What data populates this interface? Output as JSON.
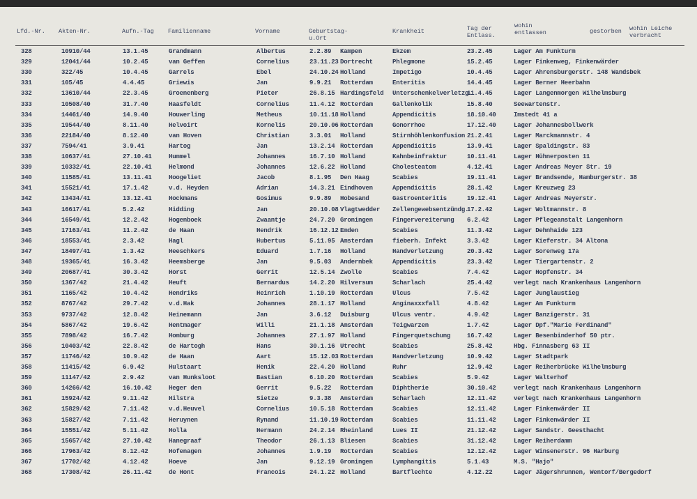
{
  "header": {
    "columns": [
      "Lfd.-Nr.",
      "Akten-Nr.",
      "Aufn.-Tag",
      "Familienname",
      "Vorname",
      "Geburtstag-u.Ort",
      "Krankheit",
      "Tag der Entlass.",
      "wohin entlassen",
      "gestorben",
      "wohin Leiche verbracht"
    ]
  },
  "table": {
    "rows": [
      [
        "328",
        "10910/44",
        "13.1.45",
        "Grandmann",
        "Albertus",
        "2.2.89",
        "Kampen",
        "Ekzem",
        "23.2.45",
        "Lager Am Funkturm"
      ],
      [
        "329",
        "12041/44",
        "10.2.45",
        "van Geffen",
        "Cornelius",
        "23.11.23",
        "Dortrecht",
        "Phlegmone",
        "15.2.45",
        "Lager Finkenweg, Finkenwärder"
      ],
      [
        "330",
        "322/45",
        "10.4.45",
        "Garrels",
        "Ebel",
        "24.10.24",
        "Holland",
        "Impetigo",
        "10.4.45",
        "Lager Ahrensburgerstr. 148 Wandsbek"
      ],
      [
        "331",
        "105/45",
        "4.4.45",
        "Griewis",
        "Jan",
        "9.9.21",
        "Rotterdam",
        "Enteritis",
        "14.4.45",
        "Lager Berner Heerbahn"
      ],
      [
        "332",
        "13610/44",
        "22.3.45",
        "Groenenberg",
        "Pieter",
        "26.8.15",
        "Hardingsfeld",
        "Unterschenkelverletzg.",
        "11.4.45",
        "Lager Langenmorgen Wilhelmsburg"
      ],
      [
        "333",
        "10508/40",
        "31.7.40",
        "Haasfeldt",
        "Cornelius",
        "11.4.12",
        "Rotterdam",
        "Gallenkolik",
        "15.8.40",
        "Seewartenstr."
      ],
      [
        "334",
        "14461/40",
        "14.9.40",
        "Houwerling",
        "Metheus",
        "10.11.18",
        "Holland",
        "Appendicitis",
        "18.10.40",
        "Imstedt 41 a"
      ],
      [
        "335",
        "19544/40",
        "8.11.40",
        "Helvoirt",
        "Kornelis",
        "20.10.06",
        "Rotterdam",
        "Gonorrhoe",
        "17.12.40",
        "Lager Johannesbollwerk"
      ],
      [
        "336",
        "22184/40",
        "8.12.40",
        "van Hoven",
        "Christian",
        "3.3.01",
        "Holland",
        "Stirnhöhlenkonfusion",
        "21.2.41",
        "Lager Marckmannstr. 4"
      ],
      [
        "337",
        "7594/41",
        "3.9.41",
        "Hartog",
        "Jan",
        "13.2.14",
        "Rotterdam",
        "Appendicitis",
        "13.9.41",
        "Lager Spaldingstr. 83"
      ],
      [
        "338",
        "10637/41",
        "27.10.41",
        "Hummel",
        "Johannes",
        "16.7.10",
        "Holland",
        "Kahnbeinfraktur",
        "10.11.41",
        "Lager Hühnerposten 11"
      ],
      [
        "339",
        "10332/41",
        "22.10.41",
        "Helmond",
        "Johannes",
        "12.6.22",
        "Holland",
        "Cholesteatom",
        "4.12.41",
        "Lager Andreas Meyer Str. 19"
      ],
      [
        "340",
        "11585/41",
        "13.11.41",
        "Hoogeliet",
        "Jacob",
        "8.1.95",
        "Den Haag",
        "Scabies",
        "19.11.41",
        "Lager Brandsende, Hamburgerstr. 38"
      ],
      [
        "341",
        "15521/41",
        "17.1.42",
        "v.d. Heyden",
        "Adrian",
        "14.3.21",
        "Eindhoven",
        "Appendicitis",
        "28.1.42",
        "Lager Kreuzweg 23"
      ],
      [
        "342",
        "13434/41",
        "13.12.41",
        "Hockmans",
        "Gosimus",
        "9.9.89",
        "Hobesand",
        "Gastroenteritis",
        "19.12.41",
        "Lager Andreas Meyerstr."
      ],
      [
        "343",
        "16617/41",
        "5.2.42",
        "Hidding",
        "Jan",
        "20.10.08",
        "Vlagtwedder",
        "Zellengewebsentzündg.",
        "17.2.42",
        "Lager Woltmannstr. 8"
      ],
      [
        "344",
        "16549/41",
        "12.2.42",
        "Hogenboek",
        "Zwaantje",
        "24.7.20",
        "Groningen",
        "Fingervereiterung",
        "6.2.42",
        "Lager Pflegeanstalt Langenhorn"
      ],
      [
        "345",
        "17163/41",
        "11.2.42",
        "de Haan",
        "Hendrik",
        "16.12.12",
        "Emden",
        "Scabies",
        "11.3.42",
        "Lager Dehnhaide 123"
      ],
      [
        "346",
        "18553/41",
        "2.3.42",
        "Hagl",
        "Hubertus",
        "5.11.95",
        "Amsterdam",
        "fieberh. Infekt",
        "3.3.42",
        "Lager Kieferstr. 34 Altona"
      ],
      [
        "347",
        "18497/41",
        "1.3.42",
        "Heeschkers",
        "Eduard",
        "1.7.16",
        "Holland",
        "Handverletzung",
        "20.3.42",
        "Lager Sorenweg 17a"
      ],
      [
        "348",
        "19365/41",
        "16.3.42",
        "Heemsberge",
        "Jan",
        "9.5.03",
        "Andernbek",
        "Appendicitis",
        "23.3.42",
        "Lager Tiergartenstr. 2"
      ],
      [
        "349",
        "20687/41",
        "30.3.42",
        "Horst",
        "Gerrit",
        "12.5.14",
        "Zwolle",
        "Scabies",
        "7.4.42",
        "Lager Hopfenstr. 34"
      ],
      [
        "350",
        "1367/42",
        "21.4.42",
        "Heuft",
        "Bernardus",
        "14.2.20",
        "Hilversum",
        "Scharlach",
        "25.4.42",
        "verlegt nach Krankenhaus Langenhorn"
      ],
      [
        "351",
        "1165/42",
        "10.4.42",
        "Hendriks",
        "Heinrich",
        "1.10.19",
        "Rotterdam",
        "Ulcus",
        "7.5.42",
        "Lager Junglaustieg"
      ],
      [
        "352",
        "8767/42",
        "29.7.42",
        "v.d.Hak",
        "Johannes",
        "28.1.17",
        "Holland",
        "Anginaxxxfall",
        "4.8.42",
        "Lager Am Funkturm"
      ],
      [
        "353",
        "9737/42",
        "12.8.42",
        "Heinemann",
        "Jan",
        "3.6.12",
        "Duisburg",
        "Ulcus ventr.",
        "4.9.42",
        "Lager Banzigerstr. 31"
      ],
      [
        "354",
        "5867/42",
        "19.6.42",
        "Hentmager",
        "Willi",
        "21.1.18",
        "Amsterdam",
        "Teigwarzen",
        "1.7.42",
        "Lager Dpf.\"Marie Ferdinand\""
      ],
      [
        "355",
        "7898/42",
        "16.7.42",
        "Homburg",
        "Johannes",
        "27.1.97",
        "Holland",
        "Fingerquetschung",
        "16.7.42",
        "Lager Besenbinderhof 50 ptr."
      ],
      [
        "356",
        "10403/42",
        "22.8.42",
        "de Hartogh",
        "Hans",
        "30.1.16",
        "Utrecht",
        "Scabies",
        "25.8.42",
        "Hbg. Finnasberg 63 II"
      ],
      [
        "357",
        "11746/42",
        "10.9.42",
        "de Haan",
        "Aart",
        "15.12.03",
        "Rotterdam",
        "Handverletzung",
        "10.9.42",
        "Lager Stadtpark"
      ],
      [
        "358",
        "11415/42",
        "6.9.42",
        "Hulstaart",
        "Henik",
        "22.4.20",
        "Holland",
        "Ruhr",
        "12.9.42",
        "Lager Reiherbrücke Wilhelmsburg"
      ],
      [
        "359",
        "11147/42",
        "2.9.42",
        "van Hunksloot",
        "Bastian",
        "6.10.20",
        "Rotterdam",
        "Scabies",
        "5.9.42",
        "Lager Walterhof"
      ],
      [
        "360",
        "14266/42",
        "16.10.42",
        "Heger den",
        "Gerrit",
        "9.5.22",
        "Rotterdam",
        "Diphtherie",
        "30.10.42",
        "verlegt nach Krankenhaus Langenhorn"
      ],
      [
        "361",
        "15924/42",
        "9.11.42",
        "Hilstra",
        "Sietze",
        "9.3.38",
        "Amsterdam",
        "Scharlach",
        "12.11.42",
        "verlegt nach Krankenhaus Langenhorn"
      ],
      [
        "362",
        "15829/42",
        "7.11.42",
        "v.d.Heuvel",
        "Cornelius",
        "10.5.18",
        "Rotterdam",
        "Scabies",
        "12.11.42",
        "Lager Finkenwärder II"
      ],
      [
        "363",
        "15827/42",
        "7.11.42",
        "Heruynen",
        "Rynand",
        "11.10.19",
        "Rotterdam",
        "Scabies",
        "11.11.42",
        "Lager Finkenwärder II"
      ],
      [
        "364",
        "15551/42",
        "5.11.42",
        "Holla",
        "Hermann",
        "24.2.14",
        "Rheinland",
        "Lues II",
        "21.12.42",
        "Lager Sandstr. Geesthacht"
      ],
      [
        "365",
        "15657/42",
        "27.10.42",
        "Hanegraaf",
        "Theodor",
        "26.1.13",
        "Bliesen",
        "Scabies",
        "31.12.42",
        "Lager Reiherdamm"
      ],
      [
        "366",
        "17963/42",
        "8.12.42",
        "Hofenagen",
        "Johannes",
        "1.9.19",
        "Rotterdam",
        "Scabies",
        "12.12.42",
        "Lager Winsenerstr. 96 Harburg"
      ],
      [
        "367",
        "17702/42",
        "4.12.42",
        "Hoeve",
        "Jan",
        "9.12.19",
        "Groningen",
        "Lymphangitis",
        "5.1.43",
        "M.S. \"Hajo\""
      ],
      [
        "368",
        "17308/42",
        "26.11.42",
        "de Hont",
        "Francois",
        "24.1.22",
        "Holland",
        "Bartflechte",
        "4.12.22",
        "Lager Jägershrunnen, Wentorf/Bergedorf"
      ]
    ]
  }
}
